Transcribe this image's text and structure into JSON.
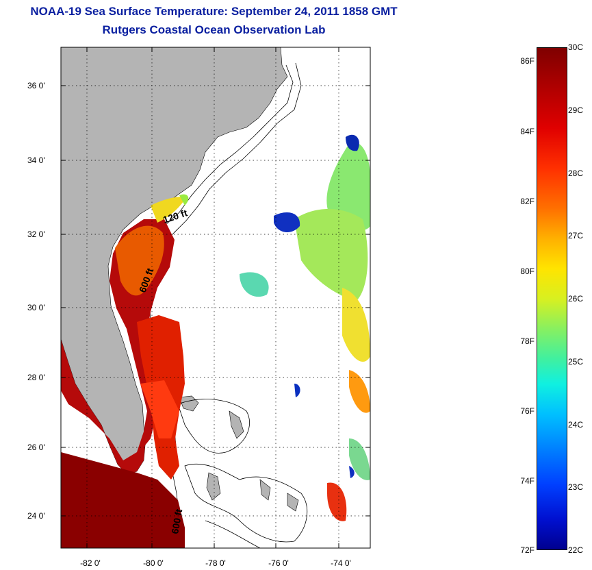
{
  "title": {
    "line1": "NOAA-19 Sea Surface Temperature:  September 24, 2011 1858 GMT",
    "line2": "Rutgers Coastal Ocean Observation Lab"
  },
  "axes": {
    "y_labels": [
      "36 0'",
      "34 0'",
      "32 0'",
      "30 0'",
      "28 0'",
      "26 0'",
      "24 0'"
    ],
    "x_labels": [
      "-82 0'",
      "-80 0'",
      "-78 0'",
      "-76 0'",
      "-74 0'"
    ],
    "grid": "dotted"
  },
  "contours": {
    "label_120": "120 ft",
    "label_600a": "600 ft",
    "label_600b": "600 ft"
  },
  "colorbar": {
    "fahrenheit": [
      "86F",
      "84F",
      "82F",
      "80F",
      "78F",
      "76F",
      "74F",
      "72F"
    ],
    "celsius": [
      "30C",
      "29C",
      "28C",
      "27C",
      "26C",
      "25C",
      "24C",
      "23C",
      "22C"
    ],
    "range_f": [
      72,
      86.4
    ],
    "range_c": [
      22,
      30
    ]
  },
  "colors": {
    "title": "#0a1fa0",
    "land": "#b4b4b4",
    "ocean_no_data": "#ffffff"
  }
}
